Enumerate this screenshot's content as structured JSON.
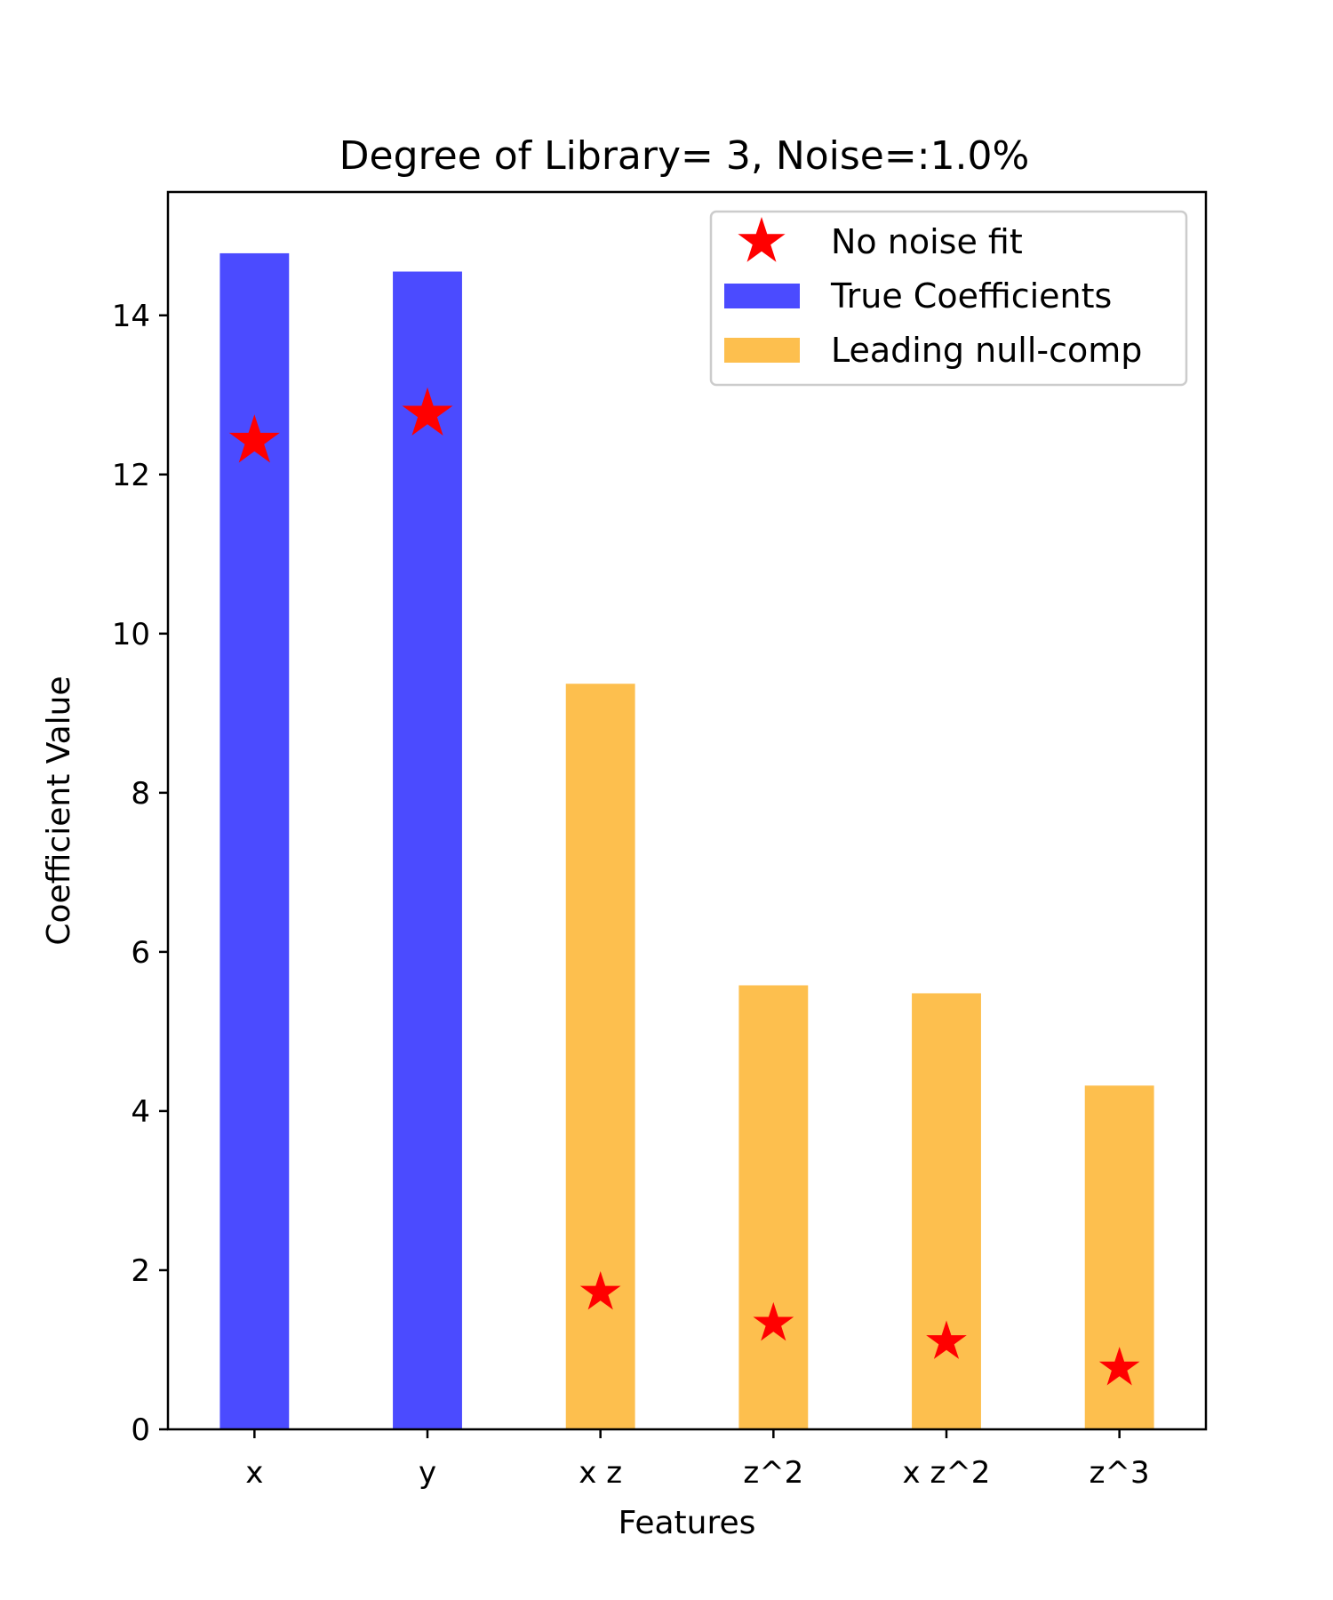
{
  "chart_data": {
    "type": "bar",
    "title": "Degree of Library= 3,   Noise=:1.0%",
    "xlabel": "Features",
    "ylabel": "Coefficient Value",
    "categories": [
      "x",
      "y",
      "x z",
      "z^2",
      "x z^2",
      "z^3"
    ],
    "ylim": [
      0,
      15.55
    ],
    "yticks": [
      0,
      2,
      4,
      6,
      8,
      10,
      12,
      14
    ],
    "grid": false,
    "legend_position": "top-right",
    "series": [
      {
        "name": "True Coefficients",
        "kind": "bar",
        "color": "#4b4bff",
        "values": [
          14.78,
          14.55,
          null,
          null,
          null,
          null
        ]
      },
      {
        "name": "Leading null-comp",
        "kind": "bar",
        "color": "#fdbf4e",
        "values": [
          null,
          null,
          9.37,
          5.58,
          5.48,
          4.32
        ]
      },
      {
        "name": "No noise fit",
        "kind": "marker",
        "marker": "star",
        "color": "#ff0000",
        "values": [
          12.42,
          12.76,
          1.72,
          1.33,
          1.1,
          0.77
        ]
      }
    ]
  }
}
